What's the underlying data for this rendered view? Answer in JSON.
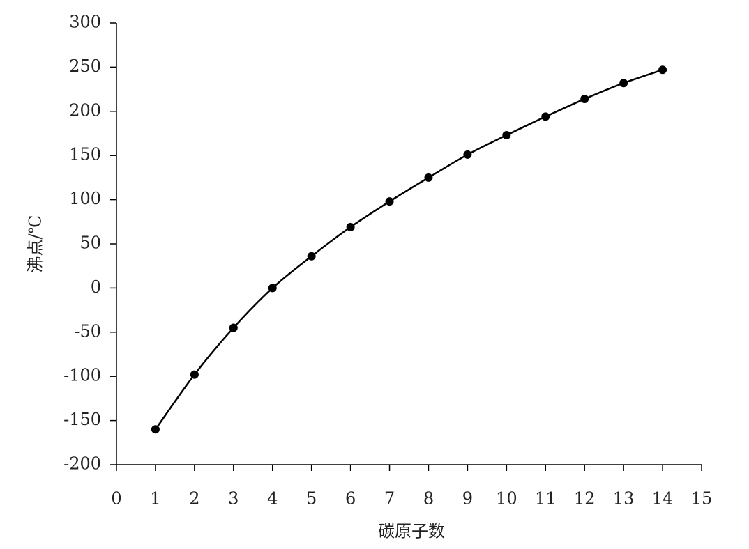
{
  "chart_data": {
    "type": "line",
    "x_label": "碳原子数",
    "y_label": "沸点/℃",
    "x": [
      1,
      2,
      3,
      4,
      5,
      6,
      7,
      8,
      9,
      10,
      11,
      12,
      13,
      14
    ],
    "series": [
      {
        "color": "#000000",
        "values": [
          -160,
          -98,
          -45,
          0,
          36,
          69,
          98,
          125,
          151,
          173,
          194,
          214,
          232,
          247
        ]
      }
    ],
    "xlim": [
      0,
      15
    ],
    "xticks": [
      0,
      1,
      2,
      3,
      4,
      5,
      6,
      7,
      8,
      9,
      10,
      11,
      12,
      13,
      14,
      15
    ],
    "ylim": [
      -200,
      300
    ],
    "yticks": [
      -200,
      -150,
      -100,
      -50,
      0,
      50,
      100,
      150,
      200,
      250,
      300
    ],
    "grid": false
  }
}
